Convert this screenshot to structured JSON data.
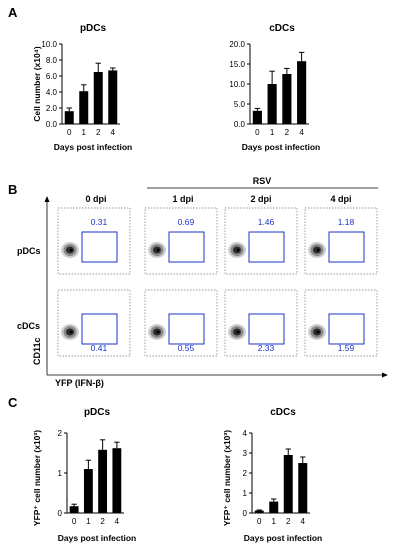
{
  "panels": {
    "a": "A",
    "b": "B",
    "c": "C"
  },
  "chart_data": [
    {
      "type": "bar",
      "panel": "A",
      "title": "pDCs",
      "categories": [
        "0",
        "1",
        "2",
        "4"
      ],
      "values": [
        1.6,
        4.1,
        6.5,
        6.7
      ],
      "errors": [
        0.4,
        0.8,
        1.1,
        0.3
      ],
      "xlabel": "Days post infection",
      "ylabel": "Cell number (x10⁴)",
      "ylim": [
        0,
        10
      ],
      "yticks": [
        "0.0",
        "2.0",
        "4.0",
        "6.0",
        "8.0",
        "10.0"
      ],
      "color": "#000000"
    },
    {
      "type": "bar",
      "panel": "A",
      "title": "cDCs",
      "categories": [
        "0",
        "1",
        "2",
        "4"
      ],
      "values": [
        3.3,
        10.0,
        12.5,
        15.7
      ],
      "errors": [
        0.6,
        3.2,
        1.4,
        2.2
      ],
      "xlabel": "Days post infection",
      "ylabel": "",
      "ylim": [
        0,
        20
      ],
      "yticks": [
        "0.0",
        "5.0",
        "10.0",
        "15.0",
        "20.0"
      ],
      "color": "#000000"
    },
    {
      "type": "bar",
      "panel": "C",
      "title": "pDCs",
      "categories": [
        "0",
        "1",
        "2",
        "4"
      ],
      "values": [
        0.17,
        1.1,
        1.58,
        1.62
      ],
      "errors": [
        0.05,
        0.22,
        0.25,
        0.15
      ],
      "xlabel": "Days post infection",
      "ylabel": "YFP⁺ cell number (x10³)",
      "ylim": [
        0,
        2
      ],
      "yticks": [
        "0",
        "1",
        "2"
      ],
      "color": "#000000"
    },
    {
      "type": "bar",
      "panel": "C",
      "title": "cDCs",
      "categories": [
        "0",
        "1",
        "2",
        "4"
      ],
      "values": [
        0.12,
        0.57,
        2.9,
        2.5
      ],
      "errors": [
        0.03,
        0.13,
        0.3,
        0.3
      ],
      "xlabel": "Days post infection",
      "ylabel": "YFP⁺ cell number (x10³)",
      "ylim": [
        0,
        4
      ],
      "yticks": [
        "0",
        "1",
        "2",
        "3",
        "4"
      ],
      "color": "#000000"
    }
  ],
  "flow": {
    "columns": [
      "0 dpi",
      "1 dpi",
      "2 dpi",
      "4 dpi"
    ],
    "rsv_label": "RSV",
    "rows": [
      {
        "label": "pDCs",
        "gates": [
          "0.31",
          "0.69",
          "1.46",
          "1.18"
        ]
      },
      {
        "label": "cDCs",
        "gates": [
          "0.41",
          "0.55",
          "2.33",
          "1.59"
        ]
      }
    ],
    "y_axis": "CD11c",
    "x_axis": "YFP (IFN-β)",
    "gate_color": "#1a33c9"
  }
}
